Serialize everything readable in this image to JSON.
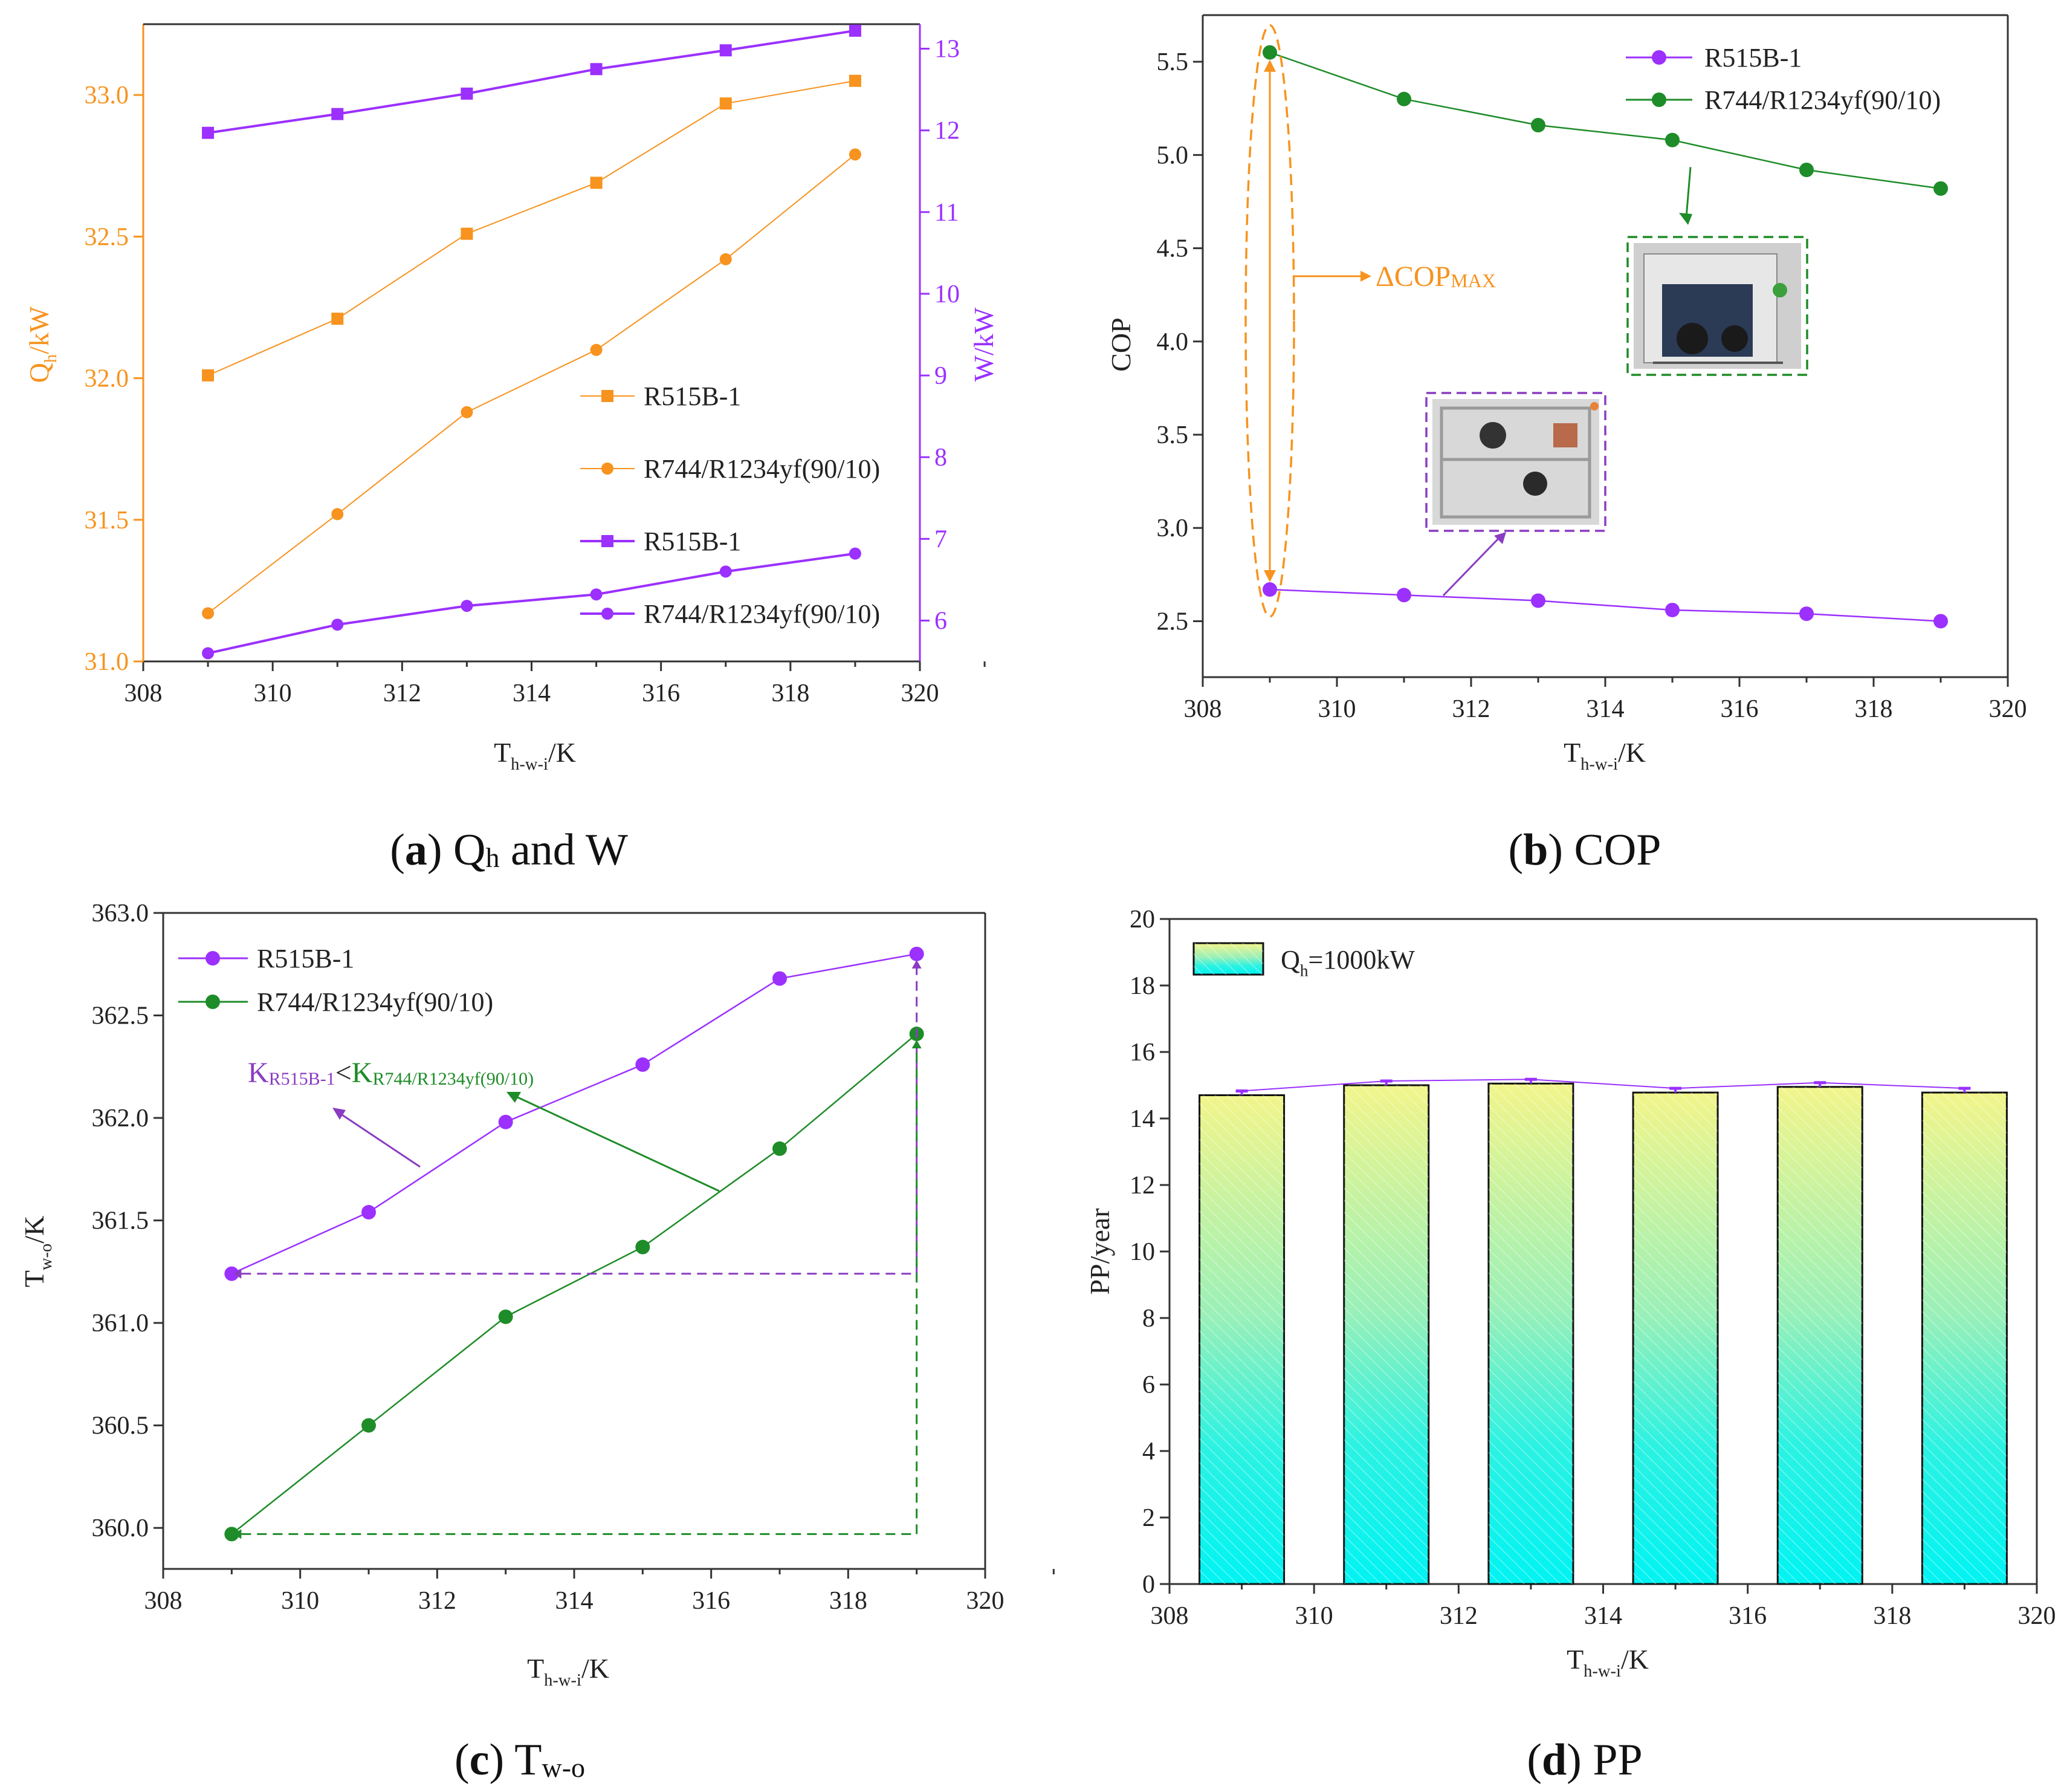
{
  "colors": {
    "orange": "#f7931e",
    "purple": "#9b30ff",
    "green": "#1e8c28",
    "cyan": "#00f5f5",
    "yellow": "#f0f58c",
    "axis": "#333333",
    "annotation_purple": "#8a3cc2"
  },
  "chart_data": [
    {
      "id": "a",
      "type": "line",
      "caption": {
        "letter": "a",
        "pre": "Q",
        "sub": "h",
        "post": " and W"
      },
      "xlabel": {
        "main": "T",
        "sub": "h-w-i",
        "post": "/K"
      },
      "ylabel_left": {
        "main": "Q",
        "sub": "h",
        "post": "/kW"
      },
      "ylabel_right": "W/kW",
      "xlim": [
        308,
        320
      ],
      "ylim_left": [
        31.0,
        33.25
      ],
      "ylim_right": [
        5.5,
        13.3
      ],
      "xticks": [
        "308",
        "310",
        "312",
        "314",
        "316",
        "318",
        "320"
      ],
      "yticks_left": [
        "31.0",
        "31.5",
        "32.0",
        "32.5",
        "33.0"
      ],
      "yticks_right": [
        "6",
        "7",
        "8",
        "9",
        "10",
        "11",
        "12",
        "13"
      ],
      "x": [
        309,
        311,
        313,
        315,
        317,
        319
      ],
      "series": [
        {
          "name": "R515B-1",
          "axis": "left",
          "marker": "square",
          "color": "#f7931e",
          "values": [
            32.01,
            32.21,
            32.51,
            32.69,
            32.97,
            33.05
          ]
        },
        {
          "name": "R744/R1234yf(90/10)",
          "axis": "left",
          "marker": "circle",
          "color": "#f7931e",
          "values": [
            31.17,
            31.52,
            31.88,
            32.1,
            32.42,
            32.79
          ]
        },
        {
          "name": "R515B-1",
          "axis": "right",
          "marker": "square",
          "color": "#9b30ff",
          "values": [
            11.97,
            12.2,
            12.45,
            12.75,
            12.98,
            13.22
          ]
        },
        {
          "name": "R744/R1234yf(90/10)",
          "axis": "right",
          "marker": "circle",
          "color": "#9b30ff",
          "values": [
            5.6,
            5.95,
            6.18,
            6.32,
            6.6,
            6.82
          ]
        }
      ]
    },
    {
      "id": "b",
      "type": "line",
      "caption": {
        "letter": "b",
        "text": " COP"
      },
      "xlabel": {
        "main": "T",
        "sub": "h-w-i",
        "post": "/K"
      },
      "ylabel": "COP",
      "xlim": [
        308,
        320
      ],
      "ylim": [
        2.2,
        5.75
      ],
      "xticks": [
        "308",
        "310",
        "312",
        "314",
        "316",
        "318",
        "320"
      ],
      "yticks": [
        "2.5",
        "3.0",
        "3.5",
        "4.0",
        "4.5",
        "5.0",
        "5.5"
      ],
      "x": [
        309,
        311,
        313,
        315,
        317,
        319
      ],
      "series": [
        {
          "name": "R515B-1",
          "marker": "circle",
          "color": "#9b30ff",
          "values": [
            2.67,
            2.64,
            2.61,
            2.56,
            2.54,
            2.5
          ]
        },
        {
          "name": "R744/R1234yf(90/10)",
          "marker": "circle",
          "color": "#1e8c28",
          "values": [
            5.55,
            5.3,
            5.16,
            5.08,
            4.92,
            4.82
          ]
        }
      ],
      "annotation": {
        "main": "ΔCOP",
        "sub": "MAX"
      }
    },
    {
      "id": "c",
      "type": "line",
      "caption": {
        "letter": "c",
        "pre": "T",
        "sub": "w-o"
      },
      "xlabel": {
        "main": "T",
        "sub": "h-w-i",
        "post": "/K"
      },
      "ylabel": {
        "main": "T",
        "sub": "w-o",
        "post": "/K"
      },
      "xlim": [
        308,
        320
      ],
      "ylim": [
        359.8,
        363.0
      ],
      "xticks": [
        "308",
        "310",
        "312",
        "314",
        "316",
        "318",
        "320"
      ],
      "yticks": [
        "360.0",
        "360.5",
        "361.0",
        "361.5",
        "362.0",
        "362.5",
        "363.0"
      ],
      "x": [
        309,
        311,
        313,
        315,
        317,
        319
      ],
      "series": [
        {
          "name": "R515B-1",
          "marker": "circle",
          "color": "#9b30ff",
          "values": [
            361.24,
            361.54,
            361.98,
            362.26,
            362.68,
            362.8
          ]
        },
        {
          "name": "R744/R1234yf(90/10)",
          "marker": "circle",
          "color": "#1e8c28",
          "values": [
            359.97,
            360.5,
            361.03,
            361.37,
            361.85,
            362.41
          ]
        }
      ],
      "annotation": {
        "k1": "K",
        "s1": "R515B-1",
        "lt": "<",
        "k2": "K",
        "s2": "R744/R1234yf(90/10)"
      }
    },
    {
      "id": "d",
      "type": "bar",
      "caption": {
        "letter": "d",
        "text": " PP"
      },
      "xlabel": {
        "main": "T",
        "sub": "h-w-i",
        "post": "/K"
      },
      "ylabel": "PP/year",
      "xlim": [
        308,
        320
      ],
      "ylim": [
        0,
        20
      ],
      "xticks": [
        "308",
        "310",
        "312",
        "314",
        "316",
        "318",
        "320"
      ],
      "yticks": [
        "0",
        "2",
        "4",
        "6",
        "8",
        "10",
        "12",
        "14",
        "16",
        "18",
        "20"
      ],
      "x": [
        309,
        311,
        313,
        315,
        317,
        319
      ],
      "values": [
        14.7,
        15.0,
        15.05,
        14.78,
        14.95,
        14.78
      ],
      "legend": {
        "main": "Q",
        "sub": "h",
        "post": "=1000kW"
      }
    }
  ]
}
